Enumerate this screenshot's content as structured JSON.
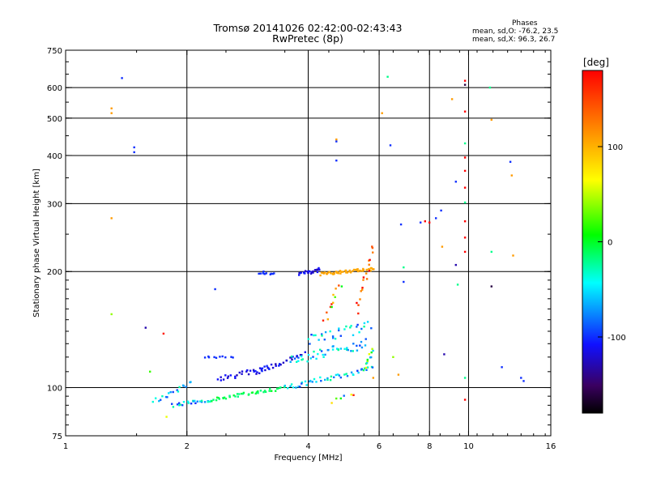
{
  "header": {
    "title_line1": "Tromsø 20141026 02:42:00-02:43:43",
    "title_line2": "RwPretec (8p)"
  },
  "phases_box": {
    "heading": "Phases",
    "line_o": "mean, sd,O: -76.2, 23.5",
    "line_x": "mean, sd,X:  96.3, 26.7"
  },
  "colorbar": {
    "unit_label": "[deg]",
    "tick_labels": [
      "100",
      "0",
      "-100"
    ],
    "range": [
      -180,
      180
    ]
  },
  "chart_data": {
    "type": "scatter",
    "xlabel": "Frequency [MHz]",
    "ylabel": "Stationary phase Virtual Height [km]",
    "xscale": "log",
    "yscale": "log",
    "xlim": [
      1,
      16
    ],
    "ylim": [
      75,
      750
    ],
    "grid": true,
    "x_ticks": [
      1,
      2,
      4,
      6,
      8,
      10,
      16
    ],
    "x_tick_labels": [
      "1",
      "2",
      "4",
      "6",
      "8",
      "10",
      "16"
    ],
    "x_major_grid": [
      2,
      4,
      6,
      8,
      10
    ],
    "y_ticks": [
      75,
      100,
      200,
      300,
      400,
      500,
      600,
      750
    ],
    "y_tick_labels": [
      "75",
      "100",
      "200",
      "300",
      "400",
      "500",
      "600",
      "750"
    ],
    "y_major_grid": [
      100,
      200,
      300,
      400,
      500,
      600
    ],
    "points": [
      [
        1.38,
        635,
        -100
      ],
      [
        1.48,
        420,
        -100
      ],
      [
        1.48,
        408,
        -100
      ],
      [
        1.3,
        530,
        110
      ],
      [
        1.3,
        515,
        110
      ],
      [
        1.3,
        275,
        110
      ],
      [
        1.3,
        155,
        40
      ],
      [
        1.58,
        143,
        -130
      ],
      [
        1.62,
        110,
        20
      ],
      [
        1.75,
        138,
        170
      ],
      [
        1.78,
        84,
        60
      ],
      [
        2.35,
        180,
        -100
      ],
      [
        3.1,
        200,
        -100
      ],
      [
        4.7,
        440,
        110
      ],
      [
        4.7,
        435,
        -100
      ],
      [
        4.7,
        388,
        -100
      ],
      [
        6.1,
        515,
        110
      ],
      [
        6.3,
        640,
        -20
      ],
      [
        6.4,
        425,
        -100
      ],
      [
        6.8,
        265,
        -100
      ],
      [
        6.9,
        205,
        -20
      ],
      [
        6.9,
        188,
        -100
      ],
      [
        7.6,
        268,
        -100
      ],
      [
        7.8,
        270,
        180
      ],
      [
        8.0,
        268,
        180
      ],
      [
        8.3,
        275,
        -100
      ],
      [
        8.55,
        288,
        -100
      ],
      [
        8.6,
        232,
        110
      ],
      [
        8.7,
        122,
        -130
      ],
      [
        9.1,
        560,
        110
      ],
      [
        9.3,
        342,
        -100
      ],
      [
        9.3,
        208,
        -130
      ],
      [
        9.4,
        185,
        -20
      ],
      [
        9.8,
        625,
        180
      ],
      [
        9.8,
        610,
        -160
      ],
      [
        9.8,
        520,
        180
      ],
      [
        9.8,
        430,
        -20
      ],
      [
        9.8,
        395,
        180
      ],
      [
        9.8,
        365,
        180
      ],
      [
        9.8,
        330,
        180
      ],
      [
        9.8,
        302,
        -20
      ],
      [
        9.8,
        270,
        180
      ],
      [
        9.8,
        245,
        180
      ],
      [
        9.8,
        225,
        180
      ],
      [
        9.8,
        106,
        -20
      ],
      [
        9.8,
        93,
        180
      ],
      [
        11.3,
        600,
        -20
      ],
      [
        11.4,
        495,
        110
      ],
      [
        11.4,
        225,
        -20
      ],
      [
        11.4,
        183,
        -160
      ],
      [
        12.1,
        113,
        -100
      ],
      [
        12.7,
        385,
        -100
      ],
      [
        12.8,
        355,
        110
      ],
      [
        12.9,
        220,
        110
      ],
      [
        13.5,
        106,
        -100
      ],
      [
        13.7,
        104,
        -100
      ],
      [
        6.5,
        120,
        40
      ],
      [
        6.7,
        108,
        110
      ],
      [
        5.8,
        106,
        110
      ]
    ],
    "traces": [
      {
        "from": [
          1.85,
          90
        ],
        "to": [
          2.3,
          93
        ],
        "n": 24,
        "jitter": 0.012,
        "phase": [
          -20,
          -100
        ]
      },
      {
        "from": [
          2.3,
          93
        ],
        "to": [
          3.5,
          100
        ],
        "n": 42,
        "jitter": 0.01,
        "phase": [
          -20,
          0
        ]
      },
      {
        "from": [
          3.5,
          100
        ],
        "to": [
          5.8,
          112
        ],
        "n": 44,
        "jitter": 0.015,
        "phase": [
          -20,
          -100
        ]
      },
      {
        "from": [
          1.65,
          92
        ],
        "to": [
          2.05,
          103
        ],
        "n": 18,
        "jitter": 0.015,
        "phase": [
          -100,
          -20
        ]
      },
      {
        "from": [
          2.4,
          105
        ],
        "to": [
          3.2,
          113
        ],
        "n": 28,
        "jitter": 0.015,
        "phase": [
          -100,
          -130
        ]
      },
      {
        "from": [
          3.0,
          110
        ],
        "to": [
          3.9,
          122
        ],
        "n": 26,
        "jitter": 0.015,
        "phase": [
          -130,
          -100
        ]
      },
      {
        "from": [
          3.6,
          118
        ],
        "to": [
          5.6,
          130
        ],
        "n": 44,
        "jitter": 0.03,
        "phase": [
          -100,
          -20
        ]
      },
      {
        "from": [
          4.0,
          133
        ],
        "to": [
          5.7,
          145
        ],
        "n": 30,
        "jitter": 0.035,
        "phase": [
          -20,
          -100
        ]
      },
      {
        "from": [
          2.2,
          120
        ],
        "to": [
          2.6,
          120
        ],
        "n": 10,
        "jitter": 0.005,
        "phase": [
          -100,
          -100
        ]
      },
      {
        "from": [
          3.0,
          197
        ],
        "to": [
          3.3,
          198
        ],
        "n": 10,
        "jitter": 0.006,
        "phase": [
          -100,
          -100
        ]
      },
      {
        "from": [
          3.8,
          198
        ],
        "to": [
          4.3,
          202
        ],
        "n": 24,
        "jitter": 0.012,
        "phase": [
          -100,
          -130
        ]
      },
      {
        "from": [
          4.3,
          197
        ],
        "to": [
          5.8,
          203
        ],
        "n": 54,
        "jitter": 0.008,
        "phase": [
          110,
          100
        ]
      },
      {
        "from": [
          4.4,
          150
        ],
        "to": [
          4.8,
          185
        ],
        "n": 12,
        "jitter": 0.02,
        "phase": [
          -20,
          180
        ]
      },
      {
        "from": [
          5.3,
          160
        ],
        "to": [
          5.8,
          230
        ],
        "n": 18,
        "jitter": 0.03,
        "phase": [
          180,
          110
        ]
      },
      {
        "from": [
          5.5,
          112
        ],
        "to": [
          5.8,
          125
        ],
        "n": 12,
        "jitter": 0.01,
        "phase": [
          110,
          -100
        ]
      },
      {
        "from": [
          4.6,
          92
        ],
        "to": [
          5.2,
          96
        ],
        "n": 6,
        "jitter": 0.01,
        "phase": [
          180,
          -100
        ]
      }
    ]
  }
}
